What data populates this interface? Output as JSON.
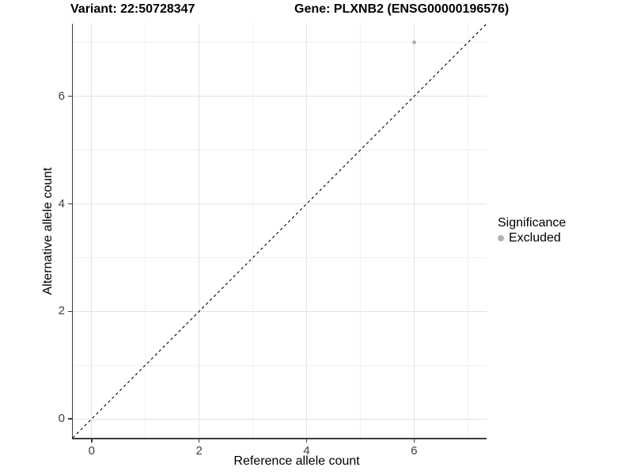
{
  "figure": {
    "title_left": "Variant: 22:50728347",
    "title_right": "Gene: PLXNB2 (ENSG00000196576)"
  },
  "chart_data": {
    "type": "scatter",
    "title": "Variant: 22:50728347 / Gene: PLXNB2 (ENSG00000196576)",
    "xlabel": "Reference allele count",
    "ylabel": "Alternative allele count",
    "xlim": [
      -0.35,
      7.35
    ],
    "ylim": [
      -0.35,
      7.35
    ],
    "x_ticks": [
      0,
      2,
      4,
      6
    ],
    "y_ticks": [
      0,
      2,
      4,
      6
    ],
    "x_minor_ticks": [
      1,
      3,
      5,
      7
    ],
    "y_minor_ticks": [
      1,
      3,
      5,
      7
    ],
    "grid": "major+minor",
    "series": [
      {
        "name": "Excluded",
        "color": "#b3b3b3",
        "points": [
          {
            "x": 6,
            "y": 7
          }
        ]
      }
    ],
    "reference_line": {
      "type": "identity-diagonal",
      "from": [
        -0.35,
        -0.35
      ],
      "to": [
        7.35,
        7.35
      ],
      "style": "dashed",
      "color": "#000000"
    },
    "legend": {
      "title": "Significance",
      "position": "right",
      "entries": [
        {
          "label": "Excluded",
          "color": "#b3b3b3"
        }
      ]
    },
    "colors": {
      "grid_major": "#e4e4e4",
      "grid_minor": "#f1f1f1",
      "axis_line": "#3c3c3c",
      "tick_label": "#404040"
    }
  }
}
